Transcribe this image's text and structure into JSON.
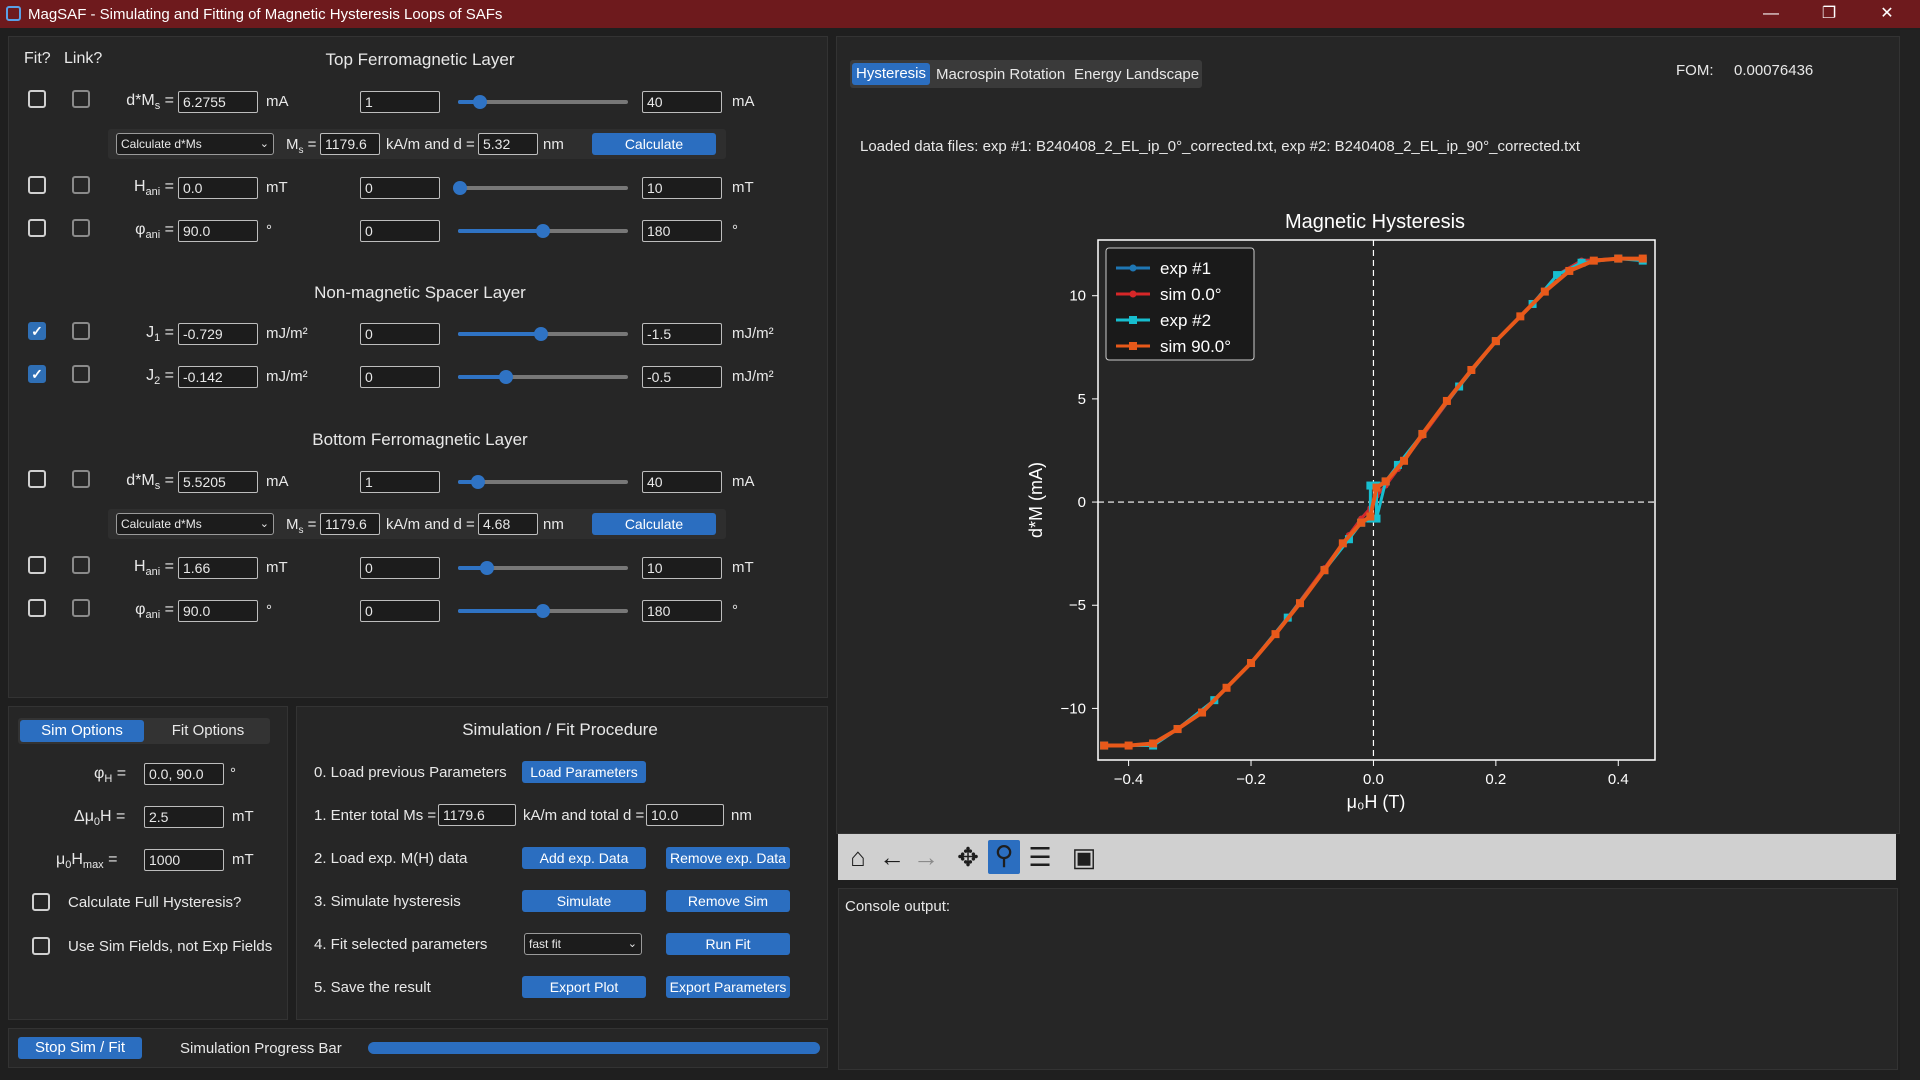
{
  "window": {
    "title": "MagSAF - Simulating and Fitting of Magnetic Hysteresis Loops of SAFs",
    "controls": [
      "—",
      "❐",
      "✕"
    ]
  },
  "top_layer": {
    "fit_label": "Fit?",
    "link_label": "Link?",
    "title": "Top Ferromagnetic Layer",
    "dMs": {
      "label": "d*M",
      "sub": "s",
      "value": "6.2755",
      "unit": "mA",
      "min": "1",
      "max": "40",
      "unit2": "mA",
      "pos": 0.13,
      "fit": false,
      "link": false
    },
    "calc": {
      "mode": "Calculate d*Ms",
      "ms_label": "M",
      "ms_sub": "s",
      "ms_eq": "=",
      "ms_value": "1179.6",
      "mid_text": "kA/m and d =",
      "d_value": "5.32",
      "d_unit": "nm",
      "button": "Calculate"
    },
    "Hani": {
      "label": "H",
      "sub": "ani",
      "value": "0.0",
      "unit": "mT",
      "min": "0",
      "max": "10",
      "unit2": "mT",
      "pos": 0.01,
      "fit": false,
      "link": false
    },
    "phiani": {
      "label": "φ",
      "sub": "ani",
      "value": "90.0",
      "unit": "°",
      "min": "0",
      "max": "180",
      "unit2": "°",
      "pos": 0.5,
      "fit": false,
      "link": false
    }
  },
  "spacer": {
    "title": "Non-magnetic Spacer Layer",
    "J1": {
      "label": "J",
      "sub": "1",
      "value": "-0.729",
      "unit": "mJ/m²",
      "min": "0",
      "max": "-1.5",
      "unit2": "mJ/m²",
      "pos": 0.49,
      "fit": true,
      "link": false
    },
    "J2": {
      "label": "J",
      "sub": "2",
      "value": "-0.142",
      "unit": "mJ/m²",
      "min": "0",
      "max": "-0.5",
      "unit2": "mJ/m²",
      "pos": 0.28,
      "fit": true,
      "link": false
    }
  },
  "bottom_layer": {
    "title": "Bottom Ferromagnetic Layer",
    "dMs": {
      "label": "d*M",
      "sub": "s",
      "value": "5.5205",
      "unit": "mA",
      "min": "1",
      "max": "40",
      "unit2": "mA",
      "pos": 0.12,
      "fit": false,
      "link": false
    },
    "calc": {
      "mode": "Calculate d*Ms",
      "ms_label": "M",
      "ms_sub": "s",
      "ms_eq": "=",
      "ms_value": "1179.6",
      "mid_text": "kA/m and d =",
      "d_value": "4.68",
      "d_unit": "nm",
      "button": "Calculate"
    },
    "Hani": {
      "label": "H",
      "sub": "ani",
      "value": "1.66",
      "unit": "mT",
      "min": "0",
      "max": "10",
      "unit2": "mT",
      "pos": 0.17,
      "fit": false,
      "link": false
    },
    "phiani": {
      "label": "φ",
      "sub": "ani",
      "value": "90.0",
      "unit": "°",
      "min": "0",
      "max": "180",
      "unit2": "°",
      "pos": 0.5,
      "fit": false,
      "link": false
    }
  },
  "sim_options": {
    "tabs": [
      "Sim Options",
      "Fit Options"
    ],
    "phiH": {
      "label": "φ",
      "sub": "H",
      "eq": "=",
      "value": "0.0, 90.0",
      "unit": "°"
    },
    "dH": {
      "label": "Δμ",
      "sub": "0",
      "label2": "H =",
      "value": "2.5",
      "unit": "mT"
    },
    "Hmax": {
      "label": "μ",
      "sub": "0",
      "label2": "H",
      "sub2": "max",
      "eq": "=",
      "value": "1000",
      "unit": "mT"
    },
    "full_hyst": "Calculate Full Hysteresis?",
    "sim_fields": "Use Sim Fields, not Exp Fields"
  },
  "procedure": {
    "title": "Simulation / Fit Procedure",
    "step0": {
      "label": "0. Load previous Parameters",
      "button": "Load Parameters"
    },
    "step1": {
      "label": "1. Enter total Ms =",
      "ms_value": "1179.6",
      "mid": "kA/m and total d =",
      "d_value": "10.0",
      "unit": "nm"
    },
    "step2": {
      "label": "2. Load exp. M(H) data",
      "button1": "Add exp. Data",
      "button2": "Remove exp. Data"
    },
    "step3": {
      "label": "3. Simulate hysteresis",
      "button1": "Simulate",
      "button2": "Remove Sim"
    },
    "step4": {
      "label": "4. Fit selected parameters",
      "mode": "fast fit",
      "button": "Run Fit"
    },
    "step5": {
      "label": "5. Save the result",
      "button1": "Export Plot",
      "button2": "Export Parameters"
    }
  },
  "bottom_bar": {
    "stop_button": "Stop Sim / Fit",
    "progress_label": "Simulation Progress Bar",
    "progress": 1.0
  },
  "right": {
    "tabs": [
      "Hysteresis",
      "Macrospin Rotation",
      "Energy Landscape"
    ],
    "fom_label": "FOM:",
    "fom_value": "0.00076436",
    "loaded_text": "Loaded data files: exp #1: B240408_2_EL_ip_0°_corrected.txt, exp #2: B240408_2_EL_ip_90°_corrected.txt",
    "console_label": "Console output:",
    "toolbar_icons": [
      "home-icon",
      "back-arrow-icon",
      "forward-arrow-icon",
      "pan-icon",
      "zoom-icon",
      "configure-icon",
      "save-icon"
    ]
  },
  "chart_data": {
    "type": "line",
    "title": "Magnetic Hysteresis",
    "xlabel": "μ₀H (T)",
    "ylabel": "d*M (mA)",
    "xlim": [
      -0.45,
      0.46
    ],
    "ylim": [
      -12.5,
      12.7
    ],
    "xticks": [
      -0.4,
      -0.2,
      0.0,
      0.2,
      0.4
    ],
    "xtick_labels": [
      "−0.4",
      "−0.2",
      "0.0",
      "0.2",
      "0.4"
    ],
    "yticks": [
      -10,
      -5,
      0,
      5,
      10
    ],
    "ytick_labels": [
      "−10",
      "−5",
      "0",
      "5",
      "10"
    ],
    "legend_position": "top-left",
    "grid": false,
    "dashed_zero_lines": true,
    "series": [
      {
        "name": "exp #1",
        "color": "#1f77b4",
        "marker": "circle",
        "x": [
          -0.44,
          -0.36,
          -0.32,
          -0.26,
          -0.2,
          -0.14,
          -0.08,
          -0.04,
          -0.02,
          -0.005,
          0.0,
          0.005,
          0.02,
          0.04,
          0.08,
          0.14,
          0.2,
          0.26,
          0.3,
          0.34,
          0.4,
          0.44
        ],
        "y": [
          -11.8,
          -11.8,
          -11.0,
          -9.6,
          -7.8,
          -5.6,
          -3.2,
          -1.6,
          -0.8,
          -0.3,
          0.0,
          0.3,
          0.8,
          1.6,
          3.2,
          5.6,
          7.8,
          9.6,
          11.0,
          11.7,
          11.8,
          11.8
        ]
      },
      {
        "name": "sim 0.0°",
        "color": "#d62728",
        "marker": "circle",
        "x": [
          -0.44,
          -0.36,
          -0.32,
          -0.26,
          -0.2,
          -0.14,
          -0.08,
          -0.04,
          -0.02,
          -0.005,
          0.0,
          0.005,
          0.02,
          0.04,
          0.08,
          0.14,
          0.2,
          0.26,
          0.3,
          0.34,
          0.4,
          0.44
        ],
        "y": [
          -11.8,
          -11.8,
          -11.0,
          -9.6,
          -7.8,
          -5.6,
          -3.2,
          -1.6,
          -0.8,
          -0.3,
          0.0,
          0.3,
          0.8,
          1.6,
          3.2,
          5.6,
          7.8,
          9.6,
          11.0,
          11.7,
          11.8,
          11.8
        ]
      },
      {
        "name": "exp #2",
        "color": "#17becf",
        "marker": "square",
        "x": [
          -0.44,
          -0.36,
          -0.32,
          -0.26,
          -0.2,
          -0.14,
          -0.08,
          -0.04,
          -0.02,
          -0.005,
          -0.005,
          0.005,
          0.005,
          0.02,
          0.04,
          0.08,
          0.14,
          0.2,
          0.26,
          0.3,
          0.34,
          0.4,
          0.44
        ],
        "y": [
          -11.8,
          -11.8,
          -11.0,
          -9.6,
          -7.8,
          -5.6,
          -3.3,
          -1.8,
          -1.0,
          -0.8,
          0.8,
          0.8,
          -0.8,
          1.0,
          1.8,
          3.3,
          5.6,
          7.8,
          9.6,
          11.0,
          11.6,
          11.8,
          11.7
        ]
      },
      {
        "name": "sim 90.0°",
        "color": "#e8591a",
        "marker": "square",
        "x": [
          -0.44,
          -0.4,
          -0.36,
          -0.32,
          -0.28,
          -0.24,
          -0.2,
          -0.16,
          -0.12,
          -0.08,
          -0.05,
          -0.02,
          -0.005,
          0.005,
          0.02,
          0.05,
          0.08,
          0.12,
          0.16,
          0.2,
          0.24,
          0.28,
          0.32,
          0.36,
          0.4,
          0.44
        ],
        "y": [
          -11.8,
          -11.8,
          -11.7,
          -11.0,
          -10.2,
          -9.0,
          -7.8,
          -6.4,
          -4.9,
          -3.3,
          -2.0,
          -1.0,
          -0.7,
          0.7,
          1.0,
          2.0,
          3.3,
          4.9,
          6.4,
          7.8,
          9.0,
          10.2,
          11.2,
          11.7,
          11.8,
          11.8
        ]
      }
    ]
  }
}
